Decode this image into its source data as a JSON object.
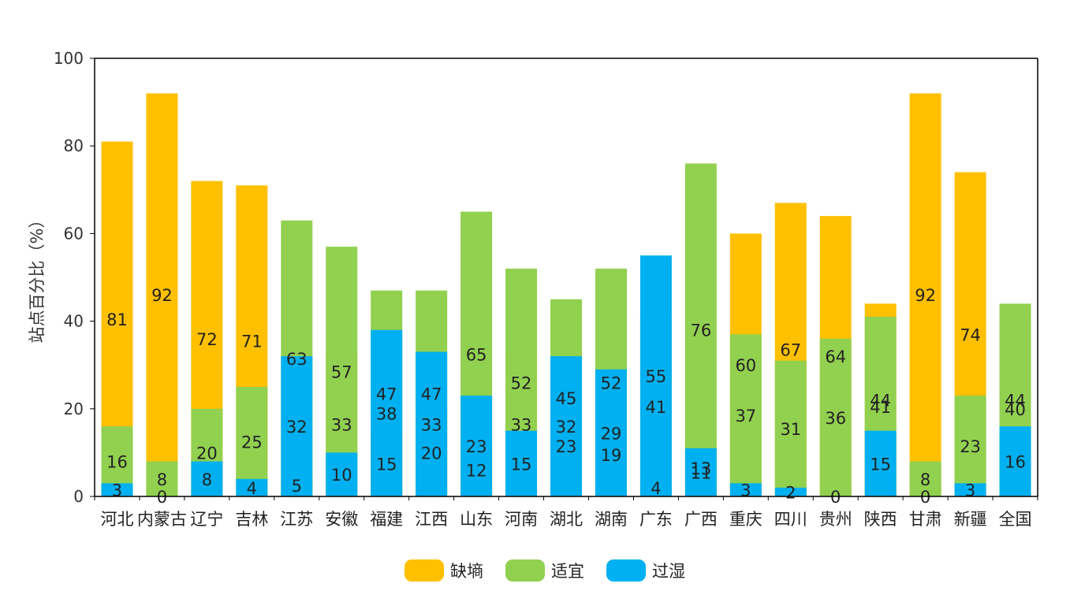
{
  "chart_data": {
    "type": "bar",
    "stacked": true,
    "title": "",
    "xlabel": "",
    "ylabel": "站点百分比（%）",
    "ylim": [
      0,
      100
    ],
    "yticks": [
      0,
      20,
      40,
      60,
      80,
      100
    ],
    "grid": false,
    "legend_position": "bottom-center",
    "categories": [
      "河北",
      "内蒙古",
      "辽宁",
      "吉林",
      "江苏",
      "安徽",
      "福建",
      "江西",
      "山东",
      "河南",
      "湖北",
      "湖南",
      "广东",
      "广西",
      "重庆",
      "四川",
      "贵州",
      "陕西",
      "甘肃",
      "新疆",
      "全国"
    ],
    "series": [
      {
        "name": "缺墒",
        "color": "#FFC000",
        "values": [
          81,
          92,
          72,
          71,
          5,
          33,
          15,
          20,
          12,
          33,
          23,
          19,
          4,
          13,
          60,
          67,
          64,
          44,
          92,
          74,
          40
        ]
      },
      {
        "name": "适宜",
        "color": "#92D050",
        "values": [
          16,
          8,
          20,
          25,
          63,
          57,
          47,
          47,
          65,
          52,
          45,
          52,
          41,
          76,
          37,
          31,
          36,
          41,
          8,
          23,
          44
        ]
      },
      {
        "name": "过湿",
        "color": "#00B0F0",
        "values": [
          3,
          0,
          8,
          4,
          32,
          10,
          38,
          33,
          23,
          15,
          32,
          29,
          55,
          11,
          3,
          2,
          0,
          15,
          0,
          3,
          16
        ]
      }
    ]
  }
}
